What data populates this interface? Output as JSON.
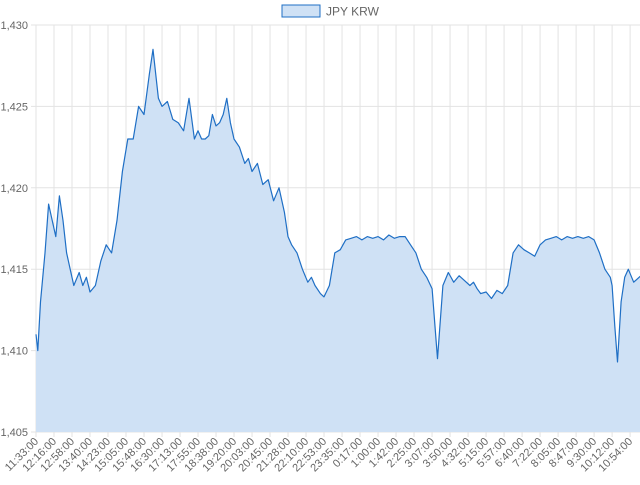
{
  "chart_data": {
    "type": "area",
    "legend": {
      "position": "top-center",
      "entries": [
        "JPY KRW"
      ]
    },
    "grid": true,
    "ylim": [
      1405,
      1430
    ],
    "y_ticks": [
      1405,
      1410,
      1415,
      1420,
      1425,
      1430
    ],
    "y_tick_labels": [
      "1,405",
      "1,410",
      "1,415",
      "1,420",
      "1,425",
      "1,430"
    ],
    "x_tick_labels": [
      "11:33:00",
      "12:16:00",
      "12:58:00",
      "13:40:00",
      "14:23:00",
      "15:05:00",
      "15:48:00",
      "16:30:00",
      "17:13:00",
      "17:55:00",
      "18:38:00",
      "19:20:00",
      "20:03:00",
      "20:45:00",
      "21:28:00",
      "22:10:00",
      "22:53:00",
      "23:35:00",
      "0:17:00",
      "1:00:00",
      "1:42:00",
      "2:25:00",
      "3:07:00",
      "3:50:00",
      "4:32:00",
      "5:15:00",
      "5:57:00",
      "6:40:00",
      "7:22:00",
      "8:05:00",
      "8:47:00",
      "9:30:00",
      "10:12:00",
      "10:54:00"
    ],
    "colors": {
      "line": "#1f6fc5",
      "fill": "#cfe1f5",
      "grid": "#e3e3e3"
    },
    "series": [
      {
        "name": "JPY KRW",
        "x_index": [
          0,
          0.1,
          0.25,
          0.5,
          0.7,
          0.9,
          1.1,
          1.3,
          1.5,
          1.7,
          1.9,
          2.1,
          2.4,
          2.6,
          2.8,
          3.0,
          3.3,
          3.6,
          3.9,
          4.2,
          4.5,
          4.8,
          5.1,
          5.4,
          5.7,
          6.0,
          6.3,
          6.5,
          6.8,
          7.0,
          7.3,
          7.6,
          7.9,
          8.2,
          8.5,
          8.8,
          9.0,
          9.2,
          9.4,
          9.6,
          9.8,
          10.0,
          10.2,
          10.4,
          10.6,
          10.8,
          11.0,
          11.3,
          11.6,
          11.8,
          12.0,
          12.3,
          12.6,
          12.9,
          13.2,
          13.5,
          13.8,
          14.0,
          14.2,
          14.5,
          14.8,
          15.1,
          15.3,
          15.5,
          15.8,
          16.0,
          16.3,
          16.6,
          16.9,
          17.2,
          17.5,
          17.8,
          18.1,
          18.4,
          18.7,
          19.0,
          19.3,
          19.6,
          19.9,
          20.2,
          20.5,
          20.8,
          21.1,
          21.4,
          21.7,
          22.0,
          22.3,
          22.6,
          22.9,
          23.2,
          23.5,
          23.8,
          24.1,
          24.3,
          24.5,
          24.7,
          25.0,
          25.3,
          25.6,
          25.9,
          26.2,
          26.5,
          26.8,
          27.1,
          27.4,
          27.7,
          28.0,
          28.3,
          28.6,
          28.9,
          29.2,
          29.5,
          29.8,
          30.1,
          30.4,
          30.7,
          31.0,
          31.3,
          31.6,
          31.9,
          32.0,
          32.15,
          32.3,
          32.5,
          32.7,
          32.9,
          33.2,
          33.5,
          33.8,
          34.0
        ],
        "values": [
          1411,
          1410,
          1413,
          1416,
          1419,
          1418,
          1417,
          1419.5,
          1418,
          1416,
          1415,
          1414,
          1414.8,
          1414,
          1414.5,
          1413.6,
          1414,
          1415.5,
          1416.5,
          1416,
          1418,
          1421,
          1423,
          1423,
          1425,
          1424.5,
          1427,
          1428.5,
          1425.5,
          1425,
          1425.3,
          1424.2,
          1424,
          1423.5,
          1425.5,
          1423,
          1423.5,
          1423,
          1423,
          1423.2,
          1424.5,
          1423.8,
          1424,
          1424.5,
          1425.5,
          1424,
          1423,
          1422.5,
          1421.5,
          1421.8,
          1421,
          1421.5,
          1420.2,
          1420.5,
          1419.2,
          1420,
          1418.5,
          1417,
          1416.5,
          1416,
          1415,
          1414.2,
          1414.5,
          1414,
          1413.5,
          1413.3,
          1414,
          1416,
          1416.2,
          1416.8,
          1416.9,
          1417,
          1416.8,
          1417,
          1416.9,
          1417,
          1416.8,
          1417.1,
          1416.9,
          1417,
          1417,
          1416.5,
          1416,
          1415,
          1414.5,
          1413.8,
          1409.5,
          1414,
          1414.8,
          1414.2,
          1414.6,
          1414.3,
          1414,
          1414.2,
          1413.8,
          1413.5,
          1413.6,
          1413.2,
          1413.7,
          1413.5,
          1414,
          1416,
          1416.5,
          1416.2,
          1416,
          1415.8,
          1416.5,
          1416.8,
          1416.9,
          1417,
          1416.8,
          1417,
          1416.9,
          1417,
          1416.9,
          1417,
          1416.8,
          1416,
          1415,
          1414.5,
          1414,
          1411.5,
          1409.3,
          1413,
          1414.5,
          1415,
          1414.2,
          1414.5,
          1414.8,
          1414.5
        ]
      }
    ]
  }
}
